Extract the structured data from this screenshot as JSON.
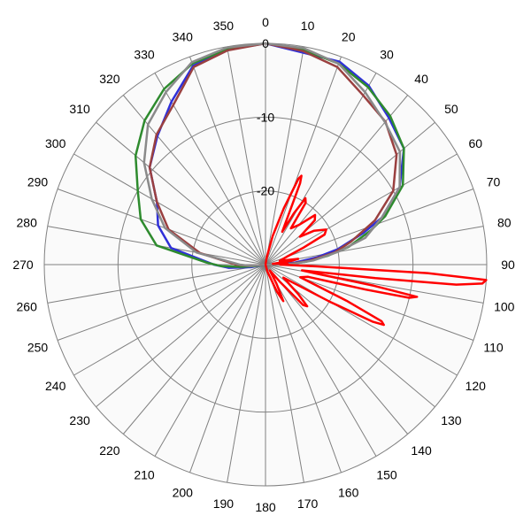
{
  "chart_data": {
    "type": "polar-line",
    "title": "",
    "angular_axis": {
      "unit": "degrees",
      "direction": "clockwise",
      "zero_at": "top",
      "tick_labels": [
        "0",
        "10",
        "20",
        "30",
        "40",
        "50",
        "60",
        "70",
        "80",
        "90",
        "100",
        "110",
        "120",
        "130",
        "140",
        "150",
        "160",
        "170",
        "180",
        "190",
        "200",
        "210",
        "220",
        "230",
        "240",
        "250",
        "260",
        "270",
        "280",
        "290",
        "300",
        "310",
        "320",
        "330",
        "340",
        "350"
      ]
    },
    "radial_axis": {
      "range": [
        -30,
        0
      ],
      "ticks": [
        -10,
        -20
      ],
      "tick_labels": [
        "0",
        "-10",
        "-20"
      ],
      "grid": true
    },
    "colors": {
      "grid": "#808080",
      "background": "#fafafa"
    },
    "series": [
      {
        "color": "#2f2fd8",
        "points": [
          [
            0,
            0
          ],
          [
            20,
            -0.7
          ],
          [
            30,
            -2
          ],
          [
            40,
            -4
          ],
          [
            50,
            -5.5
          ],
          [
            60,
            -9
          ],
          [
            68,
            -13
          ],
          [
            72,
            -16
          ],
          [
            78,
            -20
          ],
          [
            82,
            -23
          ],
          [
            86,
            -26
          ],
          [
            88,
            -27.8
          ],
          [
            90,
            -29
          ],
          [
            180,
            -30
          ],
          [
            260,
            -28
          ],
          [
            265,
            -25
          ],
          [
            270,
            -23
          ],
          [
            280,
            -17
          ],
          [
            290,
            -14.5
          ],
          [
            300,
            -13
          ],
          [
            310,
            -9.5
          ],
          [
            320,
            -7.2
          ],
          [
            330,
            -4.5
          ],
          [
            340,
            -1.3
          ],
          [
            350,
            -0.4
          ],
          [
            360,
            0
          ]
        ]
      },
      {
        "color": "#2e8b2e",
        "points": [
          [
            0,
            0
          ],
          [
            10,
            -0.4
          ],
          [
            20,
            -1
          ],
          [
            30,
            -2.2
          ],
          [
            40,
            -3.7
          ],
          [
            50,
            -5.5
          ],
          [
            60,
            -8.5
          ],
          [
            68,
            -12.5
          ],
          [
            72,
            -15
          ],
          [
            78,
            -18.5
          ],
          [
            82,
            -21.5
          ],
          [
            86,
            -24.5
          ],
          [
            88,
            -26.5
          ],
          [
            90,
            -28
          ],
          [
            180,
            -30
          ],
          [
            262,
            -28.5
          ],
          [
            265,
            -26.5
          ],
          [
            268,
            -24
          ],
          [
            272,
            -22
          ],
          [
            280,
            -15
          ],
          [
            290,
            -12
          ],
          [
            300,
            -10
          ],
          [
            310,
            -7
          ],
          [
            320,
            -4.5
          ],
          [
            330,
            -2.5
          ],
          [
            340,
            -1
          ],
          [
            350,
            -0.3
          ],
          [
            360,
            0
          ]
        ]
      },
      {
        "color": "#9a4040",
        "points": [
          [
            0,
            0
          ],
          [
            10,
            -0.6
          ],
          [
            20,
            -1.5
          ],
          [
            30,
            -3.5
          ],
          [
            40,
            -4.7
          ],
          [
            50,
            -6.8
          ],
          [
            60,
            -10
          ],
          [
            68,
            -14
          ],
          [
            75,
            -18
          ],
          [
            80,
            -20.5
          ],
          [
            85,
            -24
          ],
          [
            88,
            -26.5
          ],
          [
            90,
            -28
          ],
          [
            180,
            -30
          ],
          [
            265,
            -28
          ],
          [
            270,
            -26
          ],
          [
            280,
            -21
          ],
          [
            290,
            -16
          ],
          [
            300,
            -13
          ],
          [
            310,
            -9.5
          ],
          [
            320,
            -7
          ],
          [
            330,
            -5
          ],
          [
            340,
            -1.5
          ],
          [
            350,
            -0.5
          ],
          [
            360,
            0
          ]
        ]
      },
      {
        "color": "#8a8a8a",
        "points": [
          [
            0,
            0
          ],
          [
            10,
            -0.2
          ],
          [
            20,
            -1
          ],
          [
            30,
            -3
          ],
          [
            40,
            -4.8
          ],
          [
            50,
            -6.2
          ],
          [
            60,
            -9
          ],
          [
            68,
            -13
          ],
          [
            75,
            -16
          ],
          [
            80,
            -20
          ],
          [
            85,
            -23.5
          ],
          [
            88,
            -26
          ],
          [
            90,
            -27.5
          ],
          [
            180,
            -30
          ],
          [
            265,
            -28
          ],
          [
            270,
            -26.5
          ],
          [
            280,
            -20.5
          ],
          [
            290,
            -15.5
          ],
          [
            300,
            -12.2
          ],
          [
            310,
            -8.5
          ],
          [
            320,
            -5.2
          ],
          [
            330,
            -3
          ],
          [
            340,
            -0.8
          ],
          [
            350,
            -0.1
          ],
          [
            360,
            0
          ]
        ]
      },
      {
        "color": "#ff0000",
        "points": [
          [
            0,
            -30
          ],
          [
            10,
            -29
          ],
          [
            14,
            -26
          ],
          [
            18,
            -22
          ],
          [
            21,
            -17.5
          ],
          [
            22,
            -17
          ],
          [
            23,
            -18
          ],
          [
            24,
            -21
          ],
          [
            27,
            -25
          ],
          [
            29,
            -22
          ],
          [
            31,
            -19.5
          ],
          [
            33,
            -20
          ],
          [
            35,
            -24
          ],
          [
            40,
            -23
          ],
          [
            45,
            -20.5
          ],
          [
            48,
            -21
          ],
          [
            51,
            -24
          ],
          [
            55,
            -22
          ],
          [
            60,
            -20.5
          ],
          [
            63,
            -21
          ],
          [
            66,
            -24.5
          ],
          [
            70,
            -27
          ],
          [
            75,
            -28
          ],
          [
            80,
            -25.5
          ],
          [
            82,
            -26.5
          ],
          [
            84,
            -29
          ],
          [
            86,
            -28
          ],
          [
            88,
            -27
          ],
          [
            90,
            -28
          ],
          [
            92,
            -23
          ],
          [
            93,
            -8
          ],
          [
            94,
            0
          ],
          [
            95,
            -0.5
          ],
          [
            96,
            -4
          ],
          [
            97,
            -15
          ],
          [
            99,
            -25
          ],
          [
            100,
            -23
          ],
          [
            101,
            -15
          ],
          [
            102,
            -9
          ],
          [
            103,
            -10
          ],
          [
            104,
            -16
          ],
          [
            106,
            -24
          ],
          [
            110,
            -25
          ],
          [
            114,
            -18
          ],
          [
            116,
            -12.5
          ],
          [
            117,
            -12
          ],
          [
            118,
            -13.5
          ],
          [
            120,
            -20
          ],
          [
            126,
            -27
          ],
          [
            132,
            -24
          ],
          [
            135,
            -22
          ],
          [
            137,
            -22.5
          ],
          [
            140,
            -27
          ],
          [
            143,
            -29
          ],
          [
            150,
            -27
          ],
          [
            154,
            -24.5
          ],
          [
            157,
            -26
          ],
          [
            165,
            -29
          ],
          [
            180,
            -30
          ]
        ]
      }
    ]
  }
}
